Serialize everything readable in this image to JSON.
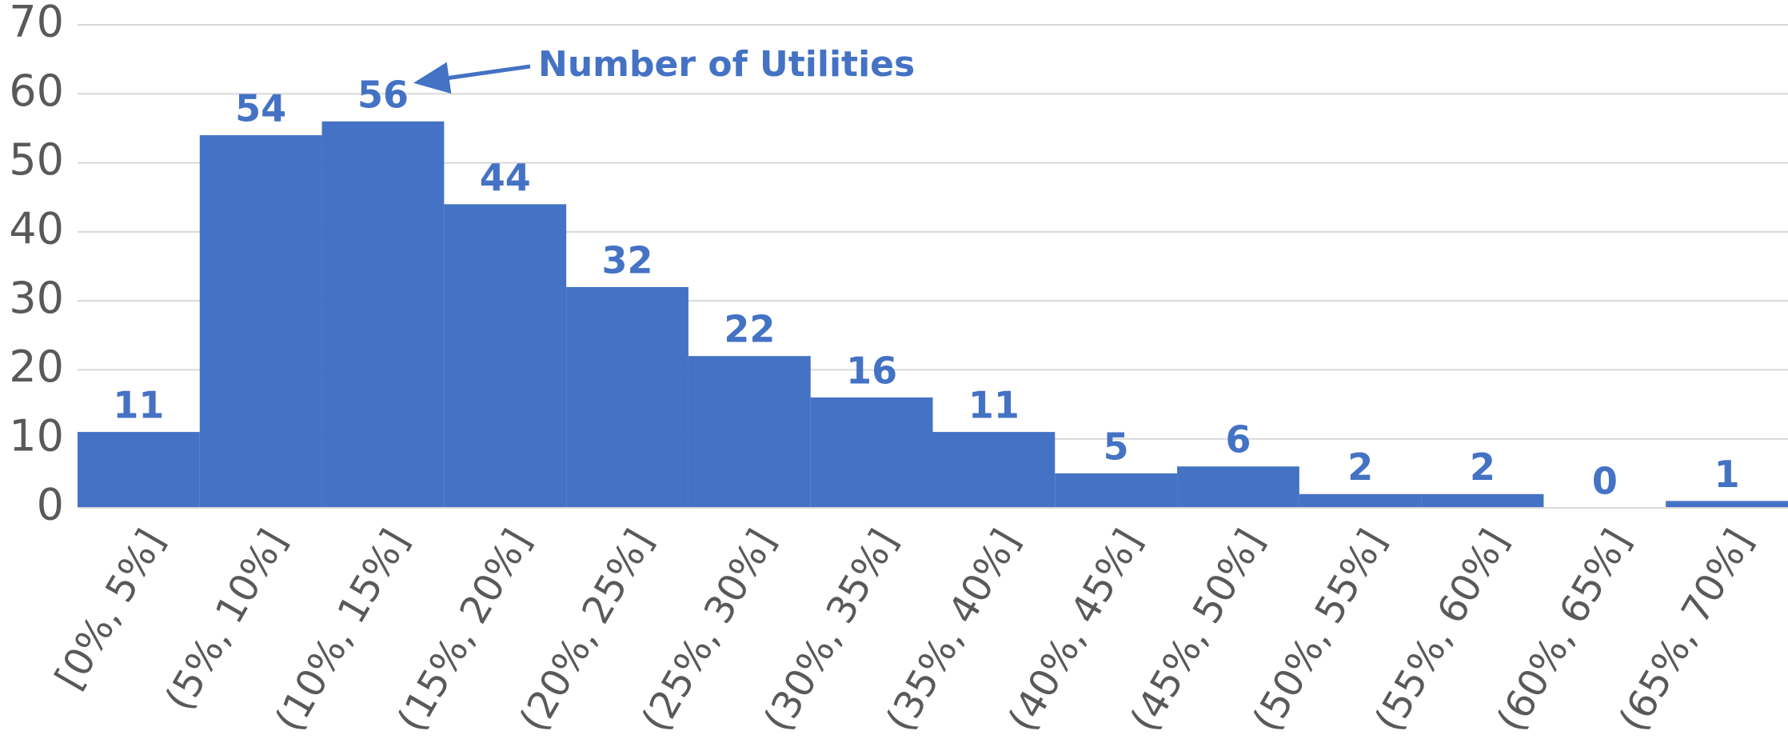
{
  "chart_data": {
    "type": "bar",
    "annotation": "Number of Utilities",
    "categories": [
      "[0%, 5%]",
      "(5%, 10%]",
      "(10%, 15%]",
      "(15%, 20%]",
      "(20%, 25%]",
      "(25%, 30%]",
      "(30%, 35%]",
      "(35%, 40%]",
      "(40%, 45%]",
      "(45%, 50%]",
      "(50%, 55%]",
      "(55%, 60%]",
      "(60%, 65%]",
      "(65%, 70%]"
    ],
    "values": [
      11,
      54,
      56,
      44,
      32,
      22,
      16,
      11,
      5,
      6,
      2,
      2,
      0,
      1
    ],
    "color": "#4472c4",
    "ylim": [
      0,
      70
    ],
    "yticks": [
      0,
      10,
      20,
      30,
      40,
      50,
      60,
      70
    ],
    "grid": true
  }
}
